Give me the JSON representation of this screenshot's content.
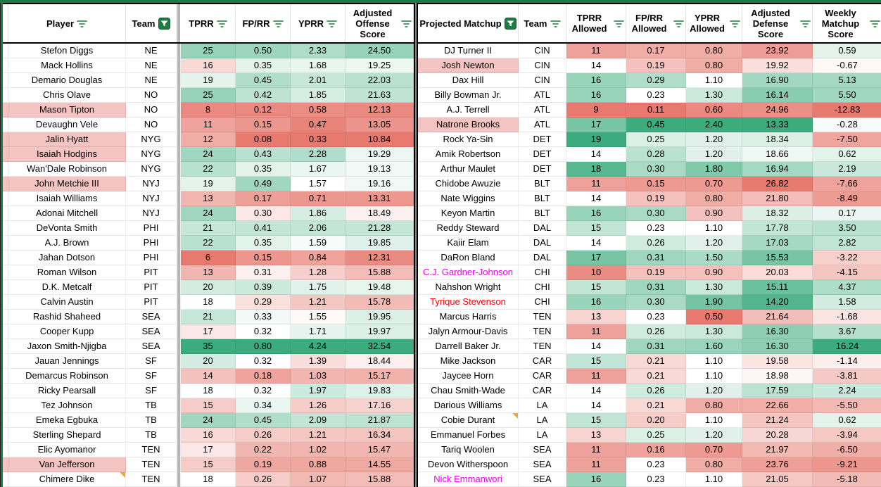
{
  "left_table": {
    "header": [
      {
        "label": "Player",
        "icon": "filter-lines"
      },
      {
        "label": "Team",
        "icon": "filter-filled"
      },
      {
        "label": "TPRR",
        "icon": "filter-lines"
      },
      {
        "label": "FP/RR",
        "icon": "filter-lines"
      },
      {
        "label": "YPRR",
        "icon": "filter-lines"
      },
      {
        "label": "Adjusted Offense Score",
        "icon": "filter-lines"
      }
    ],
    "rows": [
      {
        "player": "Stefon Diggs",
        "team": "NE",
        "tprr": "25",
        "fprr": "0.50",
        "yprr": "2.33",
        "score": "24.50"
      },
      {
        "player": "Mack Hollins",
        "team": "NE",
        "tprr": "16",
        "fprr": "0.35",
        "yprr": "1.68",
        "score": "19.25"
      },
      {
        "player": "Demario Douglas",
        "team": "NE",
        "tprr": "19",
        "fprr": "0.45",
        "yprr": "2.01",
        "score": "22.03"
      },
      {
        "player": "Chris Olave",
        "team": "NO",
        "tprr": "25",
        "fprr": "0.42",
        "yprr": "1.85",
        "score": "21.63"
      },
      {
        "player": "Mason Tipton",
        "team": "NO",
        "tprr": "8",
        "fprr": "0.12",
        "yprr": "0.58",
        "score": "12.13",
        "highlight": true
      },
      {
        "player": "Devaughn Vele",
        "team": "NO",
        "tprr": "11",
        "fprr": "0.15",
        "yprr": "0.47",
        "score": "13.05"
      },
      {
        "player": "Jalin Hyatt",
        "team": "NYG",
        "tprr": "12",
        "fprr": "0.08",
        "yprr": "0.33",
        "score": "10.84",
        "highlight": true
      },
      {
        "player": "Isaiah Hodgins",
        "team": "NYG",
        "tprr": "24",
        "fprr": "0.43",
        "yprr": "2.28",
        "score": "19.29",
        "highlight": true
      },
      {
        "player": "Wan'Dale Robinson",
        "team": "NYG",
        "tprr": "22",
        "fprr": "0.35",
        "yprr": "1.67",
        "score": "19.13"
      },
      {
        "player": "John Metchie III",
        "team": "NYJ",
        "tprr": "19",
        "fprr": "0.49",
        "yprr": "1.57",
        "score": "19.16",
        "highlight": true
      },
      {
        "player": "Isaiah Williams",
        "team": "NYJ",
        "tprr": "13",
        "fprr": "0.17",
        "yprr": "0.71",
        "score": "13.31"
      },
      {
        "player": "Adonai Mitchell",
        "team": "NYJ",
        "tprr": "24",
        "fprr": "0.30",
        "yprr": "1.86",
        "score": "18.49"
      },
      {
        "player": "DeVonta Smith",
        "team": "PHI",
        "tprr": "21",
        "fprr": "0.41",
        "yprr": "2.06",
        "score": "21.28"
      },
      {
        "player": "A.J. Brown",
        "team": "PHI",
        "tprr": "22",
        "fprr": "0.35",
        "yprr": "1.59",
        "score": "19.85"
      },
      {
        "player": "Jahan Dotson",
        "team": "PHI",
        "tprr": "6",
        "fprr": "0.15",
        "yprr": "0.84",
        "score": "12.31"
      },
      {
        "player": "Roman Wilson",
        "team": "PIT",
        "tprr": "13",
        "fprr": "0.31",
        "yprr": "1.28",
        "score": "15.88"
      },
      {
        "player": "D.K. Metcalf",
        "team": "PIT",
        "tprr": "20",
        "fprr": "0.39",
        "yprr": "1.75",
        "score": "19.48"
      },
      {
        "player": "Calvin Austin",
        "team": "PIT",
        "tprr": "18",
        "fprr": "0.29",
        "yprr": "1.21",
        "score": "15.78"
      },
      {
        "player": "Rashid Shaheed",
        "team": "SEA",
        "tprr": "21",
        "fprr": "0.33",
        "yprr": "1.55",
        "score": "19.95"
      },
      {
        "player": "Cooper Kupp",
        "team": "SEA",
        "tprr": "17",
        "fprr": "0.32",
        "yprr": "1.71",
        "score": "19.97"
      },
      {
        "player": "Jaxon Smith-Njigba",
        "team": "SEA",
        "tprr": "35",
        "fprr": "0.80",
        "yprr": "4.24",
        "score": "32.54"
      },
      {
        "player": "Jauan Jennings",
        "team": "SF",
        "tprr": "20",
        "fprr": "0.32",
        "yprr": "1.39",
        "score": "18.44"
      },
      {
        "player": "Demarcus Robinson",
        "team": "SF",
        "tprr": "14",
        "fprr": "0.18",
        "yprr": "1.03",
        "score": "15.17"
      },
      {
        "player": "Ricky Pearsall",
        "team": "SF",
        "tprr": "18",
        "fprr": "0.32",
        "yprr": "1.97",
        "score": "19.83"
      },
      {
        "player": "Tez Johnson",
        "team": "TB",
        "tprr": "15",
        "fprr": "0.34",
        "yprr": "1.26",
        "score": "17.16"
      },
      {
        "player": "Emeka Egbuka",
        "team": "TB",
        "tprr": "24",
        "fprr": "0.45",
        "yprr": "2.09",
        "score": "21.87"
      },
      {
        "player": "Sterling Shepard",
        "team": "TB",
        "tprr": "16",
        "fprr": "0.26",
        "yprr": "1.21",
        "score": "16.34"
      },
      {
        "player": "Elic Ayomanor",
        "team": "TEN",
        "tprr": "17",
        "fprr": "0.22",
        "yprr": "1.02",
        "score": "15.47"
      },
      {
        "player": "Van Jefferson",
        "team": "TEN",
        "tprr": "15",
        "fprr": "0.19",
        "yprr": "0.88",
        "score": "14.55",
        "highlight": true
      },
      {
        "player": "Chimere Dike",
        "team": "TEN",
        "tprr": "18",
        "fprr": "0.26",
        "yprr": "1.07",
        "score": "15.88",
        "note": true
      }
    ]
  },
  "right_table": {
    "header": [
      {
        "label": "Projected Matchup",
        "icon": "filter-filled"
      },
      {
        "label": "Team",
        "icon": "filter-lines"
      },
      {
        "label": "TPRR Allowed",
        "icon": "filter-lines"
      },
      {
        "label": "FP/RR Allowed",
        "icon": "filter-lines"
      },
      {
        "label": "YPRR Allowed",
        "icon": "filter-lines"
      },
      {
        "label": "Adjusted Defense Score",
        "icon": "filter-lines"
      },
      {
        "label": "Weekly Matchup Score",
        "icon": "filter-lines"
      }
    ],
    "rows": [
      {
        "player": "DJ Turner II",
        "team": "CIN",
        "tprr_allowed": "11",
        "fprr_allowed": "0.17",
        "yprr_allowed": "0.80",
        "def_score": "23.92",
        "weekly": "0.59"
      },
      {
        "player": "Josh Newton",
        "team": "CIN",
        "tprr_allowed": "14",
        "fprr_allowed": "0.19",
        "yprr_allowed": "0.80",
        "def_score": "19.92",
        "weekly": "-0.67",
        "highlight": true
      },
      {
        "player": "Dax Hill",
        "team": "CIN",
        "tprr_allowed": "16",
        "fprr_allowed": "0.29",
        "yprr_allowed": "1.10",
        "def_score": "16.90",
        "weekly": "5.13"
      },
      {
        "player": "Billy Bowman Jr.",
        "team": "ATL",
        "tprr_allowed": "16",
        "fprr_allowed": "0.23",
        "yprr_allowed": "1.30",
        "def_score": "16.14",
        "weekly": "5.50"
      },
      {
        "player": "A.J. Terrell",
        "team": "ATL",
        "tprr_allowed": "9",
        "fprr_allowed": "0.11",
        "yprr_allowed": "0.60",
        "def_score": "24.96",
        "weekly": "-12.83"
      },
      {
        "player": "Natrone Brooks",
        "team": "ATL",
        "tprr_allowed": "17",
        "fprr_allowed": "0.45",
        "yprr_allowed": "2.40",
        "def_score": "13.33",
        "weekly": "-0.28",
        "highlight": true
      },
      {
        "player": "Rock Ya-Sin",
        "team": "DET",
        "tprr_allowed": "19",
        "fprr_allowed": "0.25",
        "yprr_allowed": "1.20",
        "def_score": "18.34",
        "weekly": "-7.50"
      },
      {
        "player": "Amik Robertson",
        "team": "DET",
        "tprr_allowed": "14",
        "fprr_allowed": "0.28",
        "yprr_allowed": "1.20",
        "def_score": "18.66",
        "weekly": "0.62"
      },
      {
        "player": "Arthur Maulet",
        "team": "DET",
        "tprr_allowed": "18",
        "fprr_allowed": "0.30",
        "yprr_allowed": "1.80",
        "def_score": "16.94",
        "weekly": "2.19"
      },
      {
        "player": "Chidobe Awuzie",
        "team": "BLT",
        "tprr_allowed": "11",
        "fprr_allowed": "0.15",
        "yprr_allowed": "0.70",
        "def_score": "26.82",
        "weekly": "-7.66"
      },
      {
        "player": "Nate Wiggins",
        "team": "BLT",
        "tprr_allowed": "14",
        "fprr_allowed": "0.19",
        "yprr_allowed": "0.80",
        "def_score": "21.80",
        "weekly": "-8.49"
      },
      {
        "player": "Keyon Martin",
        "team": "BLT",
        "tprr_allowed": "16",
        "fprr_allowed": "0.30",
        "yprr_allowed": "0.90",
        "def_score": "18.32",
        "weekly": "0.17"
      },
      {
        "player": "Reddy Steward",
        "team": "DAL",
        "tprr_allowed": "15",
        "fprr_allowed": "0.23",
        "yprr_allowed": "1.10",
        "def_score": "17.78",
        "weekly": "3.50"
      },
      {
        "player": "Kaiir Elam",
        "team": "DAL",
        "tprr_allowed": "14",
        "fprr_allowed": "0.26",
        "yprr_allowed": "1.20",
        "def_score": "17.03",
        "weekly": "2.82"
      },
      {
        "player": "DaRon Bland",
        "team": "DAL",
        "tprr_allowed": "17",
        "fprr_allowed": "0.31",
        "yprr_allowed": "1.50",
        "def_score": "15.53",
        "weekly": "-3.22"
      },
      {
        "player": "C.J. Gardner-Johnson",
        "team": "CHI",
        "tprr_allowed": "10",
        "fprr_allowed": "0.19",
        "yprr_allowed": "0.90",
        "def_score": "20.03",
        "weekly": "-4.15",
        "name_color": "magenta"
      },
      {
        "player": "Nahshon Wright",
        "team": "CHI",
        "tprr_allowed": "15",
        "fprr_allowed": "0.31",
        "yprr_allowed": "1.30",
        "def_score": "15.11",
        "weekly": "4.37"
      },
      {
        "player": "Tyrique Stevenson",
        "team": "CHI",
        "tprr_allowed": "16",
        "fprr_allowed": "0.30",
        "yprr_allowed": "1.90",
        "def_score": "14.20",
        "weekly": "1.58",
        "name_color": "red"
      },
      {
        "player": "Marcus Harris",
        "team": "TEN",
        "tprr_allowed": "13",
        "fprr_allowed": "0.23",
        "yprr_allowed": "0.50",
        "def_score": "21.64",
        "weekly": "-1.68"
      },
      {
        "player": "Jalyn Armour-Davis",
        "team": "TEN",
        "tprr_allowed": "11",
        "fprr_allowed": "0.26",
        "yprr_allowed": "1.30",
        "def_score": "16.30",
        "weekly": "3.67"
      },
      {
        "player": "Darrell Baker Jr.",
        "team": "TEN",
        "tprr_allowed": "14",
        "fprr_allowed": "0.31",
        "yprr_allowed": "1.60",
        "def_score": "16.30",
        "weekly": "16.24"
      },
      {
        "player": "Mike Jackson",
        "team": "CAR",
        "tprr_allowed": "15",
        "fprr_allowed": "0.21",
        "yprr_allowed": "1.10",
        "def_score": "19.58",
        "weekly": "-1.14"
      },
      {
        "player": "Jaycee Horn",
        "team": "CAR",
        "tprr_allowed": "11",
        "fprr_allowed": "0.21",
        "yprr_allowed": "1.10",
        "def_score": "18.98",
        "weekly": "-3.81"
      },
      {
        "player": "Chau Smith-Wade",
        "team": "CAR",
        "tprr_allowed": "14",
        "fprr_allowed": "0.26",
        "yprr_allowed": "1.20",
        "def_score": "17.59",
        "weekly": "2.24"
      },
      {
        "player": "Darious Williams",
        "team": "LA",
        "tprr_allowed": "14",
        "fprr_allowed": "0.21",
        "yprr_allowed": "0.80",
        "def_score": "22.66",
        "weekly": "-5.50"
      },
      {
        "player": "Cobie Durant",
        "team": "LA",
        "tprr_allowed": "15",
        "fprr_allowed": "0.20",
        "yprr_allowed": "1.10",
        "def_score": "21.24",
        "weekly": "0.62",
        "note": true
      },
      {
        "player": "Emmanuel Forbes",
        "team": "LA",
        "tprr_allowed": "13",
        "fprr_allowed": "0.25",
        "yprr_allowed": "1.20",
        "def_score": "20.28",
        "weekly": "-3.94"
      },
      {
        "player": "Tariq Woolen",
        "team": "SEA",
        "tprr_allowed": "11",
        "fprr_allowed": "0.16",
        "yprr_allowed": "0.70",
        "def_score": "21.97",
        "weekly": "-6.50"
      },
      {
        "player": "Devon Witherspoon",
        "team": "SEA",
        "tprr_allowed": "11",
        "fprr_allowed": "0.23",
        "yprr_allowed": "0.80",
        "def_score": "23.76",
        "weekly": "-9.21"
      },
      {
        "player": "Nick Emmanwori",
        "team": "SEA",
        "tprr_allowed": "16",
        "fprr_allowed": "0.23",
        "yprr_allowed": "1.10",
        "def_score": "21.05",
        "weekly": "-5.18",
        "name_color": "magenta"
      }
    ]
  },
  "colors": {
    "heat_green": "#3cac7e",
    "heat_red": "#e7796e",
    "name_highlight": "#f4c4c2",
    "note_marker": "#f2a733",
    "magenta": "#ee00ee",
    "red": "#fd0000",
    "icon_green": "#1b7d3e",
    "chrome_green": "#1c7c47"
  }
}
